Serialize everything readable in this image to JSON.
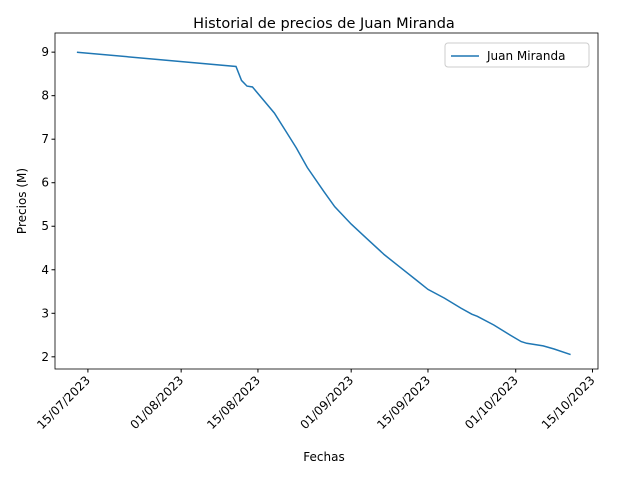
{
  "chart_data": {
    "type": "line",
    "title": "Historial de precios de Juan Miranda",
    "x_label": "Fechas",
    "y_label": "Precios (M)",
    "x": [
      "2023-07-13",
      "2023-08-11",
      "2023-08-12",
      "2023-08-13",
      "2023-08-14",
      "2023-08-16",
      "2023-08-18",
      "2023-08-20",
      "2023-08-22",
      "2023-08-24",
      "2023-08-27",
      "2023-08-29",
      "2023-09-01",
      "2023-09-04",
      "2023-09-07",
      "2023-09-10",
      "2023-09-13",
      "2023-09-15",
      "2023-09-18",
      "2023-09-21",
      "2023-09-23",
      "2023-09-24",
      "2023-09-27",
      "2023-09-30",
      "2023-10-02",
      "2023-10-03",
      "2023-10-06",
      "2023-10-08",
      "2023-10-11"
    ],
    "series": [
      {
        "name": "Juan Miranda",
        "color": "#1f77b4",
        "values": [
          9.0,
          8.67,
          8.35,
          8.22,
          8.2,
          7.9,
          7.6,
          7.2,
          6.8,
          6.35,
          5.8,
          5.45,
          5.05,
          4.7,
          4.35,
          4.05,
          3.75,
          3.55,
          3.35,
          3.12,
          2.98,
          2.93,
          2.73,
          2.5,
          2.35,
          2.31,
          2.25,
          2.18,
          2.05
        ]
      }
    ],
    "xlim": [
      "2023-07-09",
      "2023-10-16"
    ],
    "xticks": [
      {
        "value": "2023-07-15",
        "label": "15/07/2023"
      },
      {
        "value": "2023-08-01",
        "label": "01/08/2023"
      },
      {
        "value": "2023-08-15",
        "label": "15/08/2023"
      },
      {
        "value": "2023-09-01",
        "label": "01/09/2023"
      },
      {
        "value": "2023-09-15",
        "label": "15/09/2023"
      },
      {
        "value": "2023-10-01",
        "label": "01/10/2023"
      },
      {
        "value": "2023-10-15",
        "label": "15/10/2023"
      }
    ],
    "ylim": [
      1.72,
      9.44
    ],
    "yticks": [
      2,
      3,
      4,
      5,
      6,
      7,
      8,
      9
    ],
    "legend": "upper right"
  }
}
